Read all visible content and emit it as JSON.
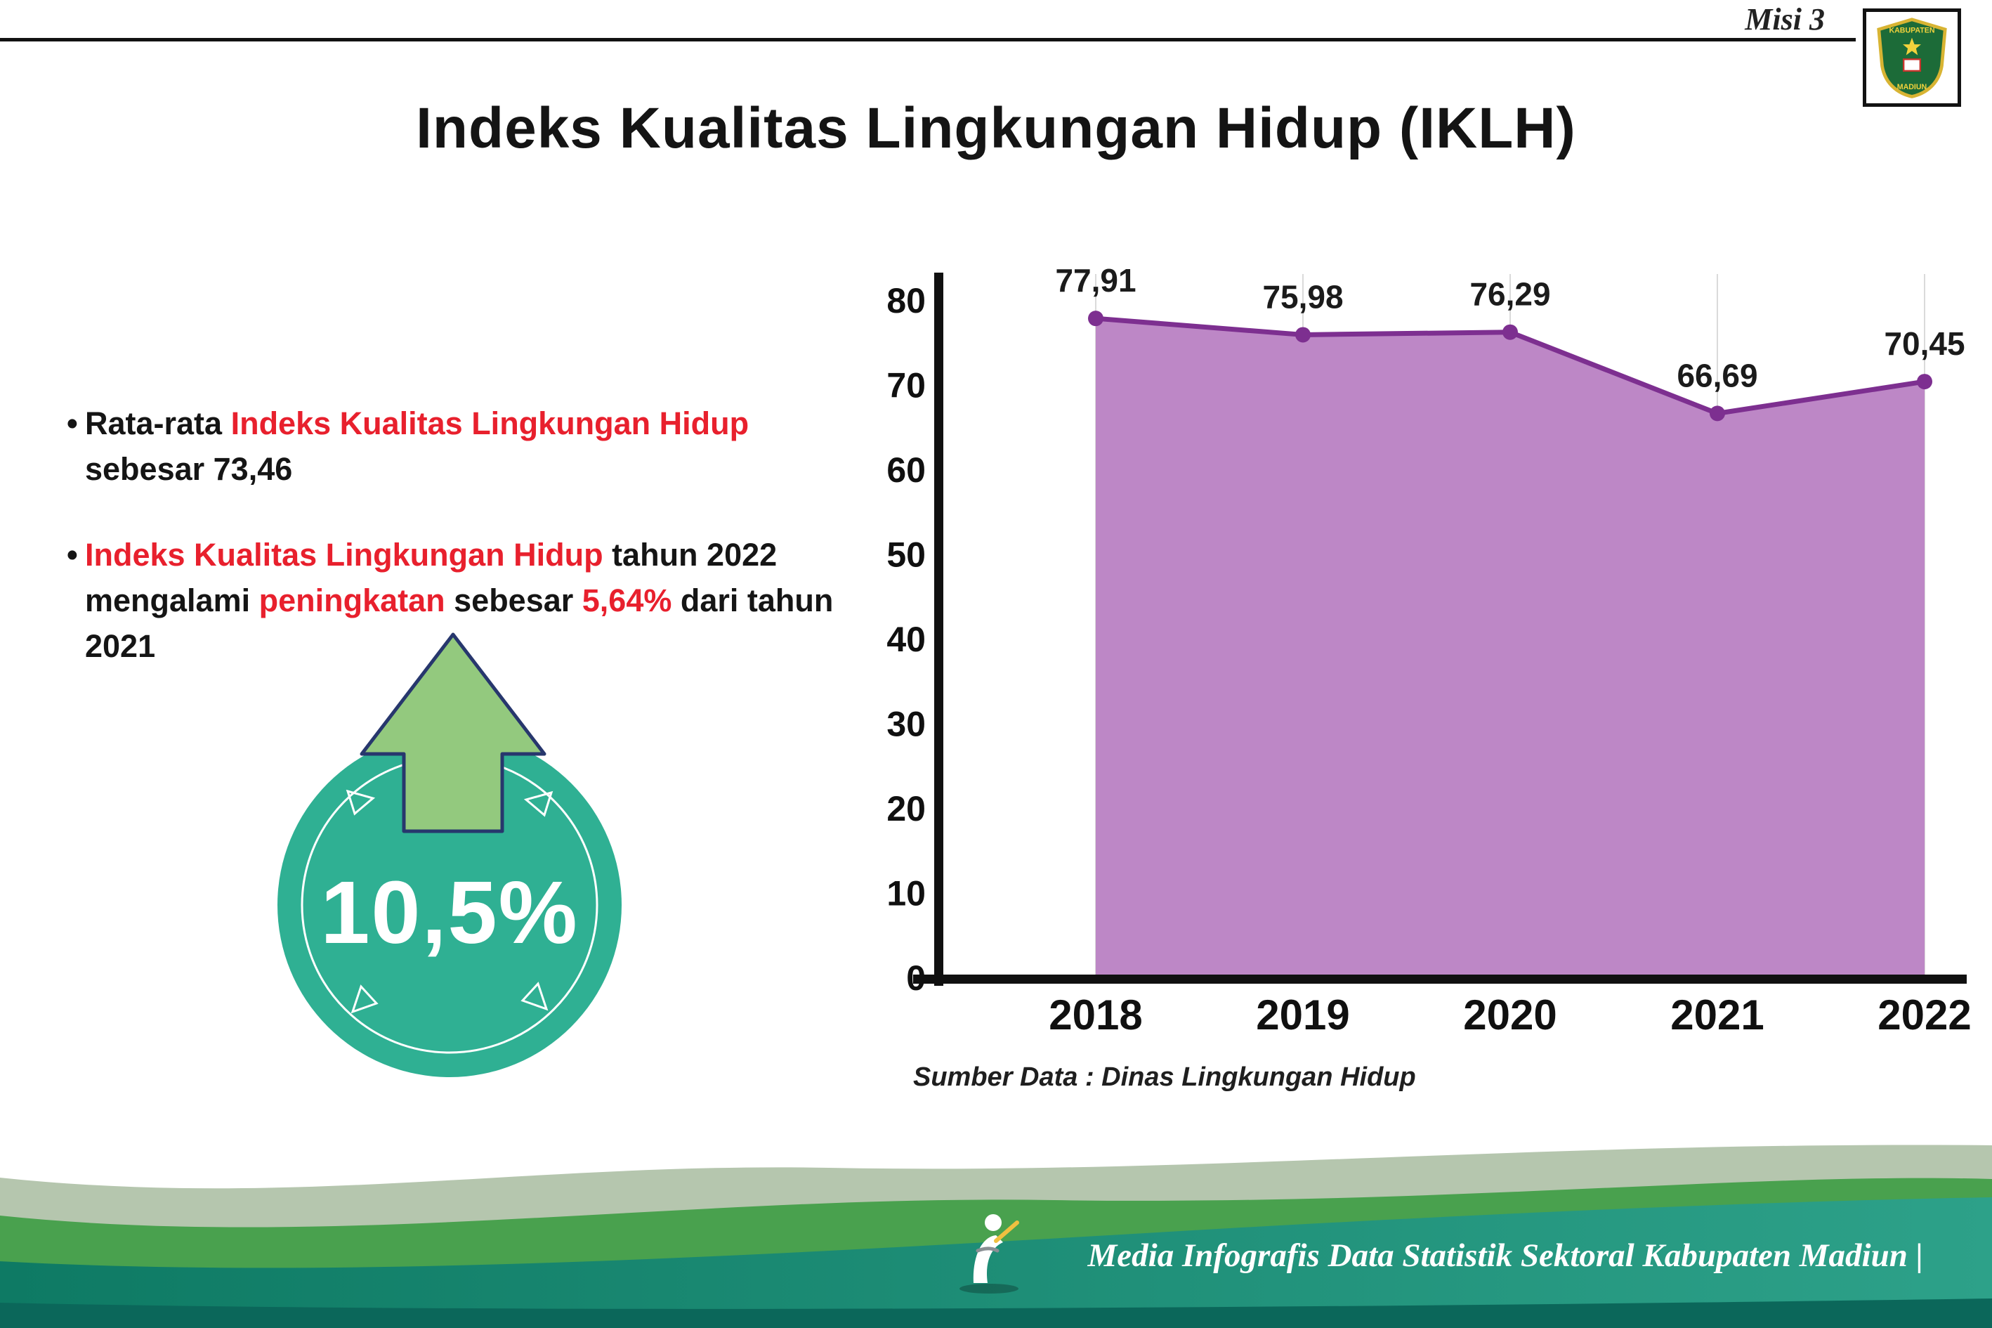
{
  "page": {
    "misi_label": "Misi 3",
    "title": "Indeks Kualitas Lingkungan Hidup (IKLH)"
  },
  "logo": {
    "line1": "KABUPATEN",
    "line2": "MADIUN"
  },
  "bullets": {
    "b1": {
      "t1": "Rata-rata ",
      "t2": "Indeks Kualitas Lingkungan Hidup",
      "t3": " sebesar 73,46"
    },
    "b2": {
      "t1": "Indeks Kualitas Lingkungan Hidup",
      "t2": " tahun 2022 mengalami ",
      "t3": "peningkatan",
      "t4": " sebesar ",
      "t5": "5,64%",
      "t6": " dari tahun 2021"
    }
  },
  "badge": {
    "value": "10,5%"
  },
  "colors": {
    "accent_red": "#e8202d",
    "badge_teal": "#2fb093",
    "arrow_green": "#93c97e",
    "footer_teal": "#117a64",
    "footer_green": "#49a14e"
  },
  "chart_data": {
    "type": "area",
    "title": "Indeks Kualitas Lingkungan Hidup (IKLH)",
    "categories": [
      "2018",
      "2019",
      "2020",
      "2021",
      "2022"
    ],
    "values": [
      77.91,
      75.98,
      76.29,
      66.69,
      70.45
    ],
    "point_labels": [
      "77,91",
      "75,98",
      "76,29",
      "66,69",
      "70,45"
    ],
    "xlabel": "",
    "ylabel": "",
    "ylim": [
      0,
      80
    ],
    "yticks": [
      0,
      10,
      20,
      30,
      40,
      50,
      60,
      70,
      80
    ],
    "grid": "vertical-light",
    "legend": "none",
    "area_color": "#bd87c6",
    "line_color": "#7d2f90",
    "source": "Sumber Data : Dinas Lingkungan Hidup"
  },
  "footer": {
    "credit": "Media Infografis Data Statistik Sektoral Kabupaten Madiun |"
  }
}
